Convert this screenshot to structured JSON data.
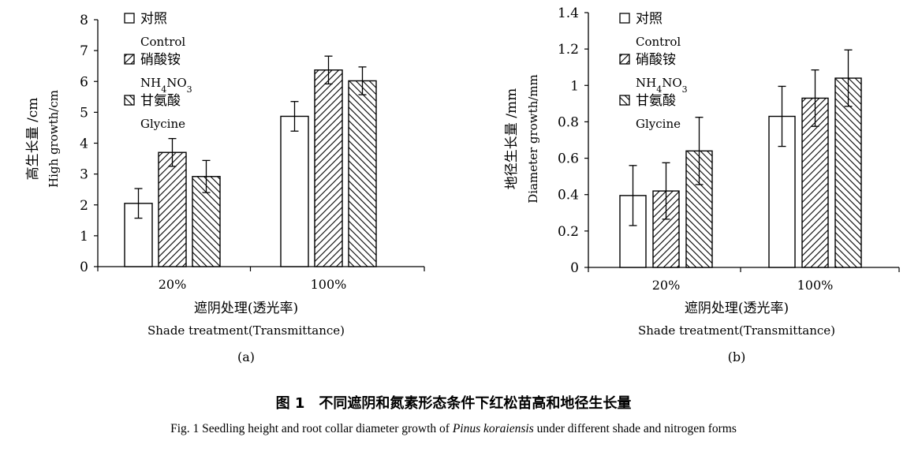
{
  "caption": {
    "cn": "图 1　不同遮阴和氮素形态条件下红松苗高和地径生长量",
    "en_pre": "Fig. 1 Seedling height and root collar diameter growth of ",
    "en_species": "Pinus koraiensis",
    "en_post": " under different shade and nitrogen forms"
  },
  "chart_data": [
    {
      "type": "bar",
      "panel": "(a)",
      "ylabel_cn": "高生长量 /cm",
      "ylabel_en": "High growth/cm",
      "xlabel_cn": "遮阴处理(透光率)",
      "xlabel_en": "Shade treatment(Transmittance)",
      "categories": [
        "20%",
        "100%"
      ],
      "ylim": [
        0,
        8
      ],
      "yticks": [
        "0",
        "1",
        "2",
        "3",
        "4",
        "5",
        "6",
        "7",
        "8"
      ],
      "legend": [
        {
          "cn": "对照",
          "en": "Control"
        },
        {
          "cn": "硝酸铵",
          "en": "NH4NO3"
        },
        {
          "cn": "甘氨酸",
          "en": "Glycine"
        }
      ],
      "series": [
        {
          "name": "对照 Control",
          "pattern": "none",
          "values": [
            2.05,
            4.87
          ],
          "errors": [
            0.48,
            0.48
          ]
        },
        {
          "name": "硝酸铵 NH4NO3",
          "pattern": "hatch-forward",
          "values": [
            3.7,
            6.37
          ],
          "errors": [
            0.45,
            0.45
          ]
        },
        {
          "name": "甘氨酸 Glycine",
          "pattern": "hatch-back",
          "values": [
            2.92,
            6.02
          ],
          "errors": [
            0.52,
            0.45
          ]
        }
      ]
    },
    {
      "type": "bar",
      "panel": "(b)",
      "ylabel_cn": "地径生长量 /mm",
      "ylabel_en": "Diameter growth/mm",
      "xlabel_cn": "遮阴处理(透光率)",
      "xlabel_en": "Shade treatment(Transmittance)",
      "categories": [
        "20%",
        "100%"
      ],
      "ylim": [
        0,
        1.4
      ],
      "yticks": [
        "0",
        "0.2",
        "0.4",
        "0.6",
        "0.8",
        "1",
        "1.2",
        "1.4"
      ],
      "legend": [
        {
          "cn": "对照",
          "en": "Control"
        },
        {
          "cn": "硝酸铵",
          "en": "NH4NO3"
        },
        {
          "cn": "甘氨酸",
          "en": "Glycine"
        }
      ],
      "series": [
        {
          "name": "对照 Control",
          "pattern": "none",
          "values": [
            0.395,
            0.83
          ],
          "errors": [
            0.165,
            0.165
          ]
        },
        {
          "name": "硝酸铵 NH4NO3",
          "pattern": "hatch-forward",
          "values": [
            0.42,
            0.93
          ],
          "errors": [
            0.155,
            0.155
          ]
        },
        {
          "name": "甘氨酸 Glycine",
          "pattern": "hatch-back",
          "values": [
            0.64,
            1.04
          ],
          "errors": [
            0.185,
            0.155
          ]
        }
      ]
    }
  ]
}
